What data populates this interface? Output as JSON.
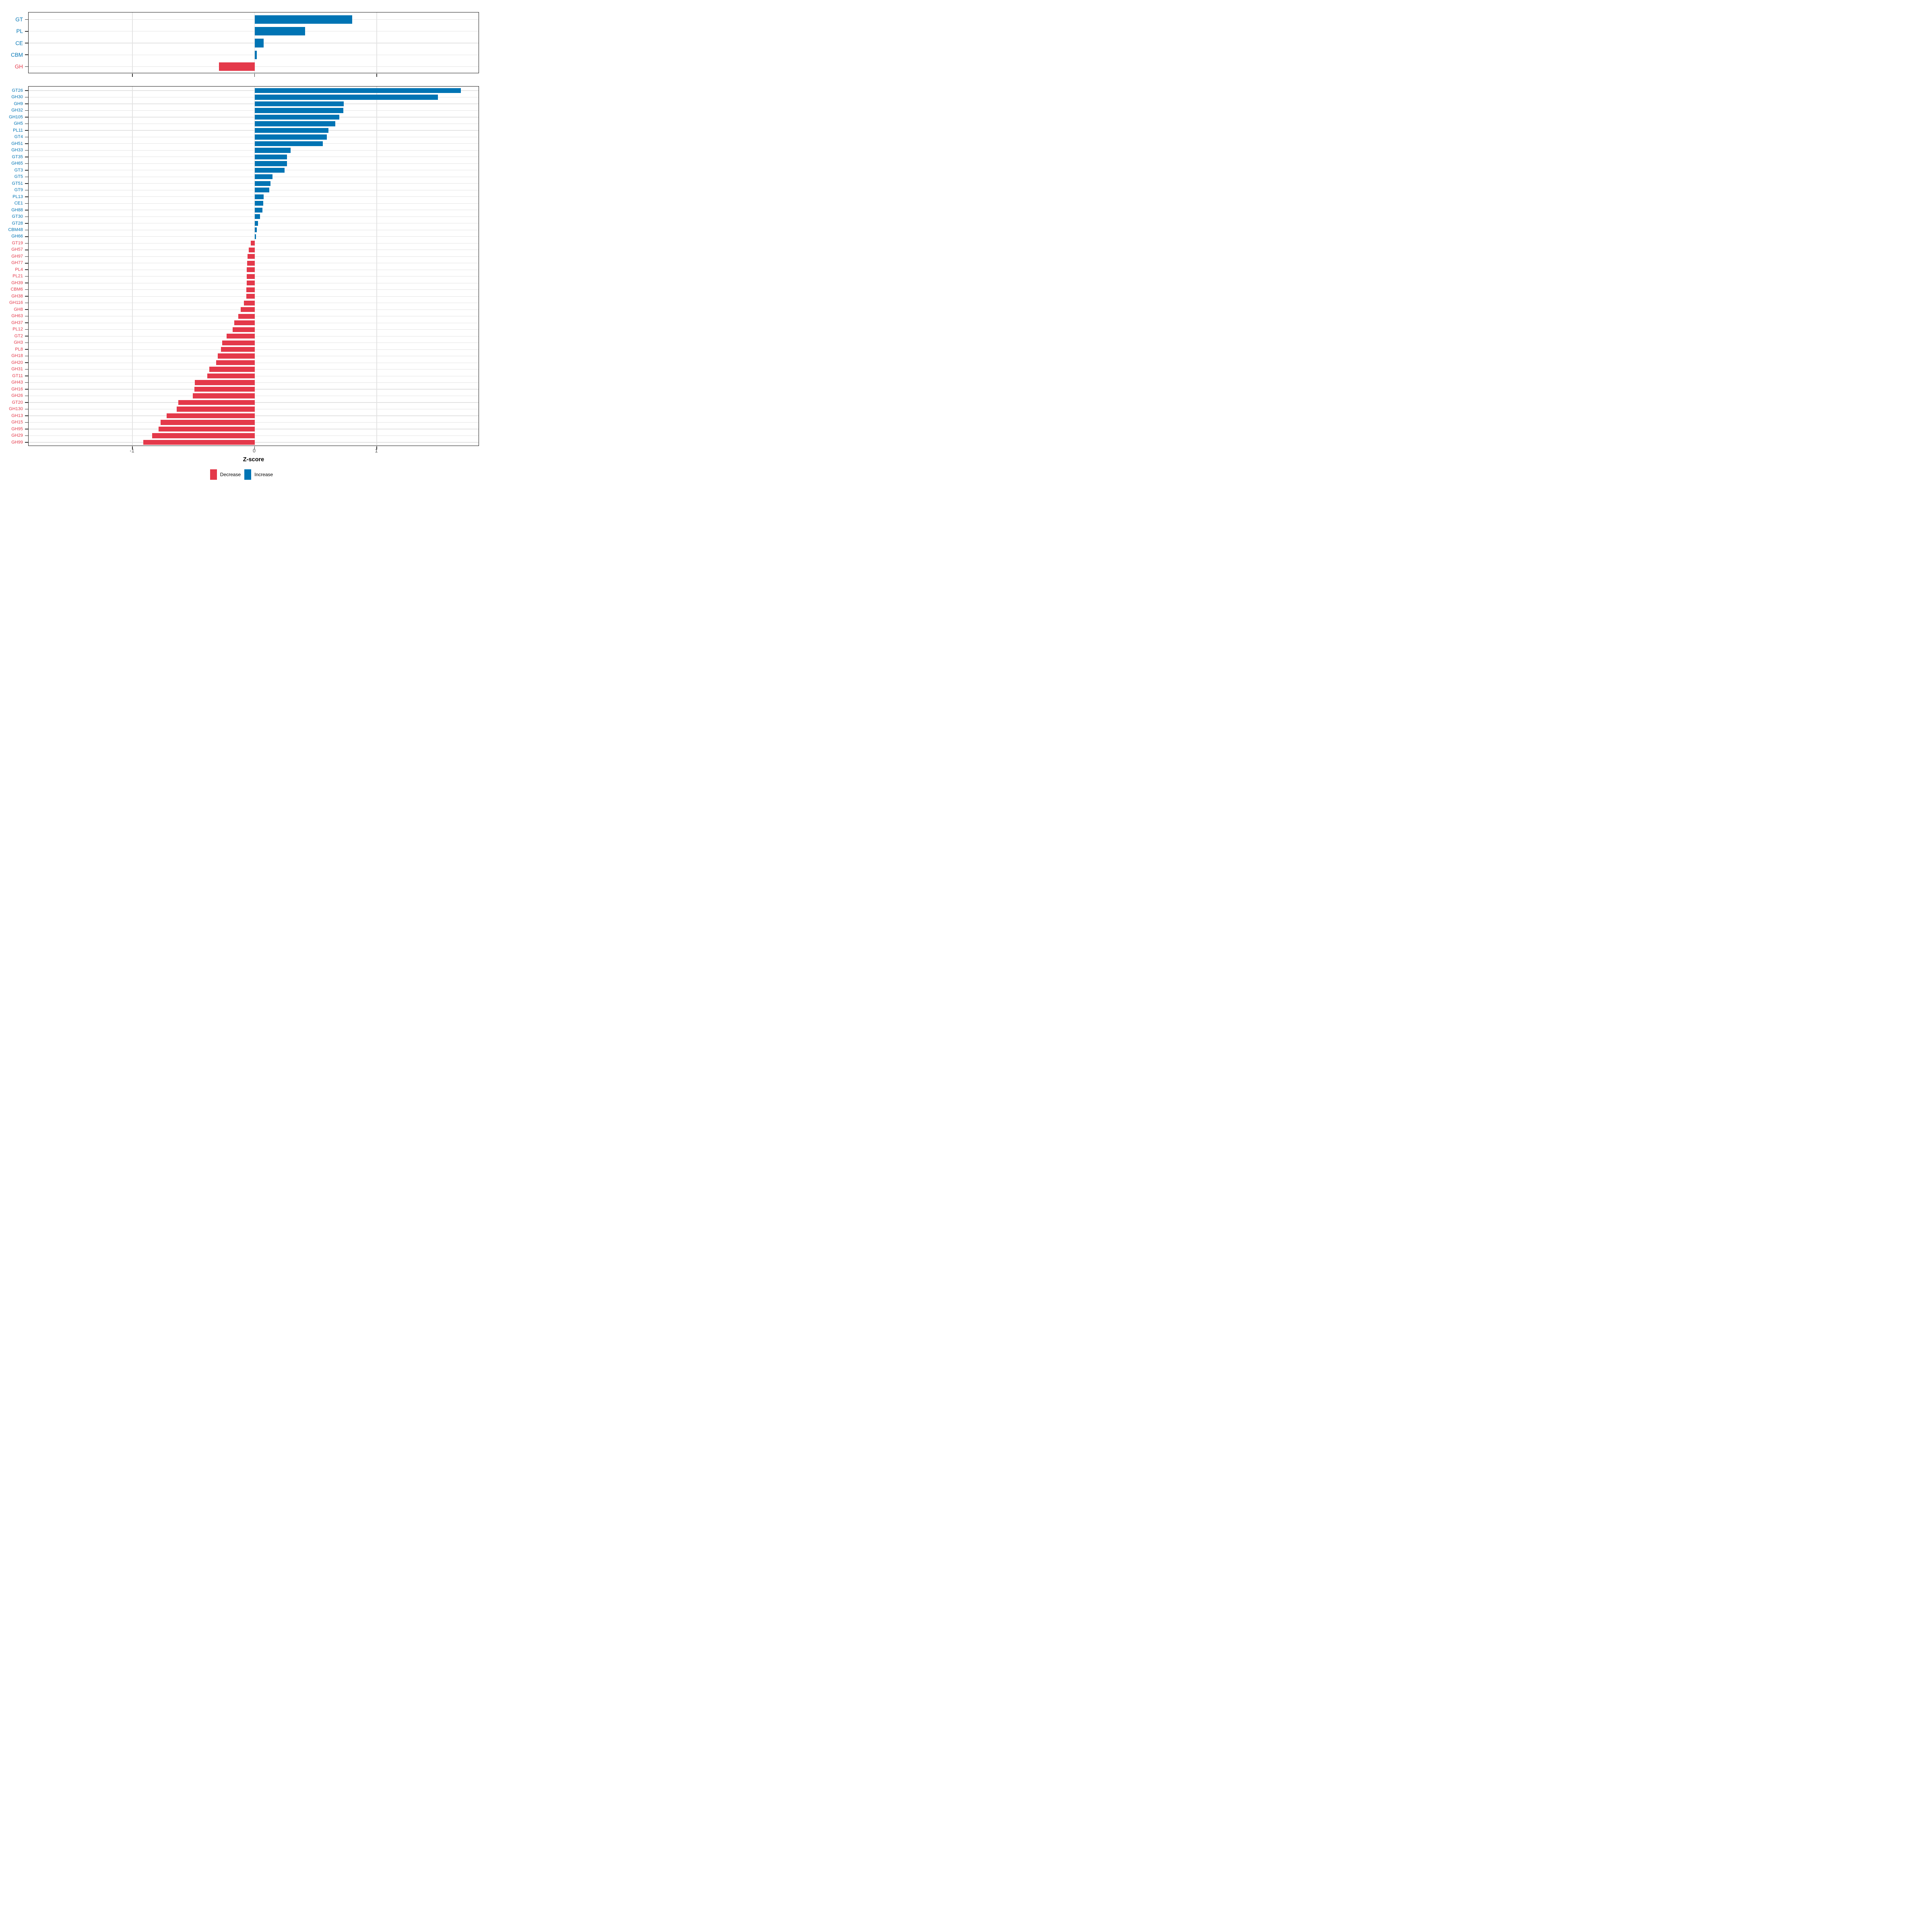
{
  "axis": {
    "label": "Z-score",
    "ticks": [
      -1,
      0,
      1
    ],
    "tick_labels": [
      "-1",
      "0",
      "1"
    ],
    "range_min": -1.85,
    "range_max": 1.84,
    "grid_color": "#e3e3e3",
    "tick_color": "#333333",
    "tick_label_color": "#4d4d4d"
  },
  "legend": {
    "items": [
      {
        "name": "decrease",
        "label": "Decrease",
        "color": "#e4394a"
      },
      {
        "name": "increase",
        "label": "Increase",
        "color": "#0074b4"
      }
    ]
  },
  "colors": {
    "increase": "#0074b4",
    "decrease": "#e4394a",
    "panel_border": "#1a1a1a",
    "background": "#ffffff"
  },
  "chart_data": [
    {
      "id": "cazyme-classes",
      "type": "bar",
      "orientation": "horizontal",
      "legend_position": "bottom",
      "grid": "major-only",
      "categories": [
        "GT",
        "PL",
        "CE",
        "CBM",
        "GH"
      ],
      "values": [
        0.8,
        0.415,
        0.073,
        0.018,
        -0.29
      ]
    },
    {
      "id": "cazyme-families",
      "type": "bar",
      "orientation": "horizontal",
      "grid": "major-only",
      "categories": [
        "GT26",
        "GH30",
        "GH9",
        "GH32",
        "GH105",
        "GH5",
        "PL11",
        "GT4",
        "GH51",
        "GH33",
        "GT35",
        "GH65",
        "GT3",
        "GT5",
        "GT51",
        "GT9",
        "PL13",
        "CE1",
        "GH88",
        "GT30",
        "GT28",
        "CBM48",
        "GH66",
        "GT19",
        "GH57",
        "GH97",
        "GH77",
        "PL4",
        "PL21",
        "GH39",
        "CBM6",
        "GH38",
        "GH116",
        "GH8",
        "GH63",
        "GH37",
        "PL12",
        "GT2",
        "GH3",
        "PL8",
        "GH18",
        "GH20",
        "GH31",
        "GT11",
        "GH43",
        "GH16",
        "GH26",
        "GT20",
        "GH130",
        "GH13",
        "GH15",
        "GH95",
        "GH29",
        "GH99"
      ],
      "values": [
        1.69,
        1.5,
        0.73,
        0.725,
        0.695,
        0.66,
        0.605,
        0.59,
        0.56,
        0.295,
        0.265,
        0.265,
        0.245,
        0.145,
        0.13,
        0.12,
        0.075,
        0.072,
        0.065,
        0.044,
        0.028,
        0.018,
        0.012,
        -0.032,
        -0.048,
        -0.058,
        -0.062,
        -0.063,
        -0.064,
        -0.065,
        -0.066,
        -0.068,
        -0.088,
        -0.113,
        -0.132,
        -0.167,
        -0.179,
        -0.228,
        -0.264,
        -0.276,
        -0.303,
        -0.315,
        -0.37,
        -0.388,
        -0.488,
        -0.494,
        -0.505,
        -0.625,
        -0.638,
        -0.72,
        -0.77,
        -0.785,
        -0.838,
        -0.91
      ]
    }
  ]
}
